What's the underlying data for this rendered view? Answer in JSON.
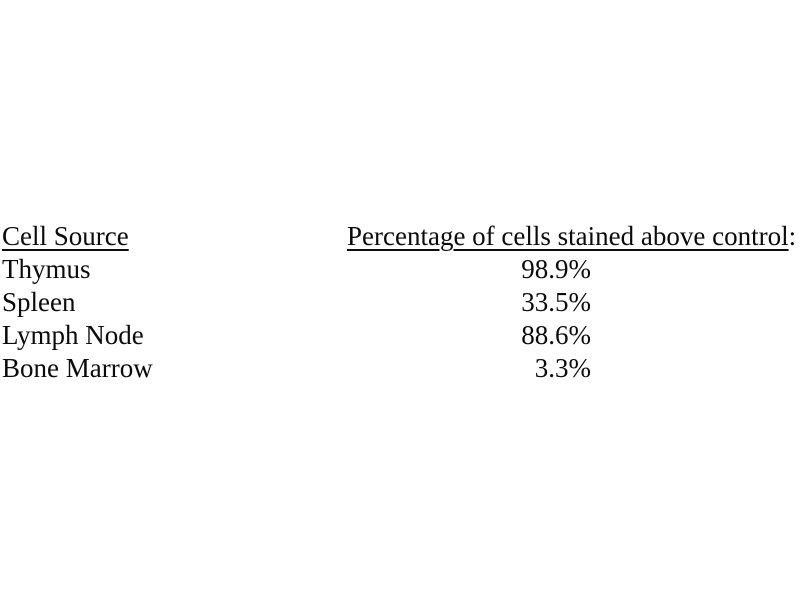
{
  "page": {
    "background_color": "#ffffff",
    "text_color": "#0b0b0b"
  },
  "table": {
    "headers": {
      "cell_source": "Cell Source",
      "percentage": "Percentage of cells stained above control",
      "percentage_suffix": ":"
    },
    "rows": [
      {
        "source": "Thymus",
        "value": "98.9%"
      },
      {
        "source": "Spleen",
        "value": "33.5%"
      },
      {
        "source": "Lymph Node",
        "value": "88.6%"
      },
      {
        "source": "Bone Marrow",
        "value": "3.3%"
      }
    ]
  },
  "chart_data": {
    "type": "table",
    "title": "Percentage of cells stained above control",
    "columns": [
      "Cell Source",
      "Percentage of cells stained above control"
    ],
    "categories": [
      "Thymus",
      "Spleen",
      "Lymph Node",
      "Bone Marrow"
    ],
    "values": [
      98.9,
      33.5,
      88.6,
      3.3
    ],
    "value_unit": "%"
  }
}
